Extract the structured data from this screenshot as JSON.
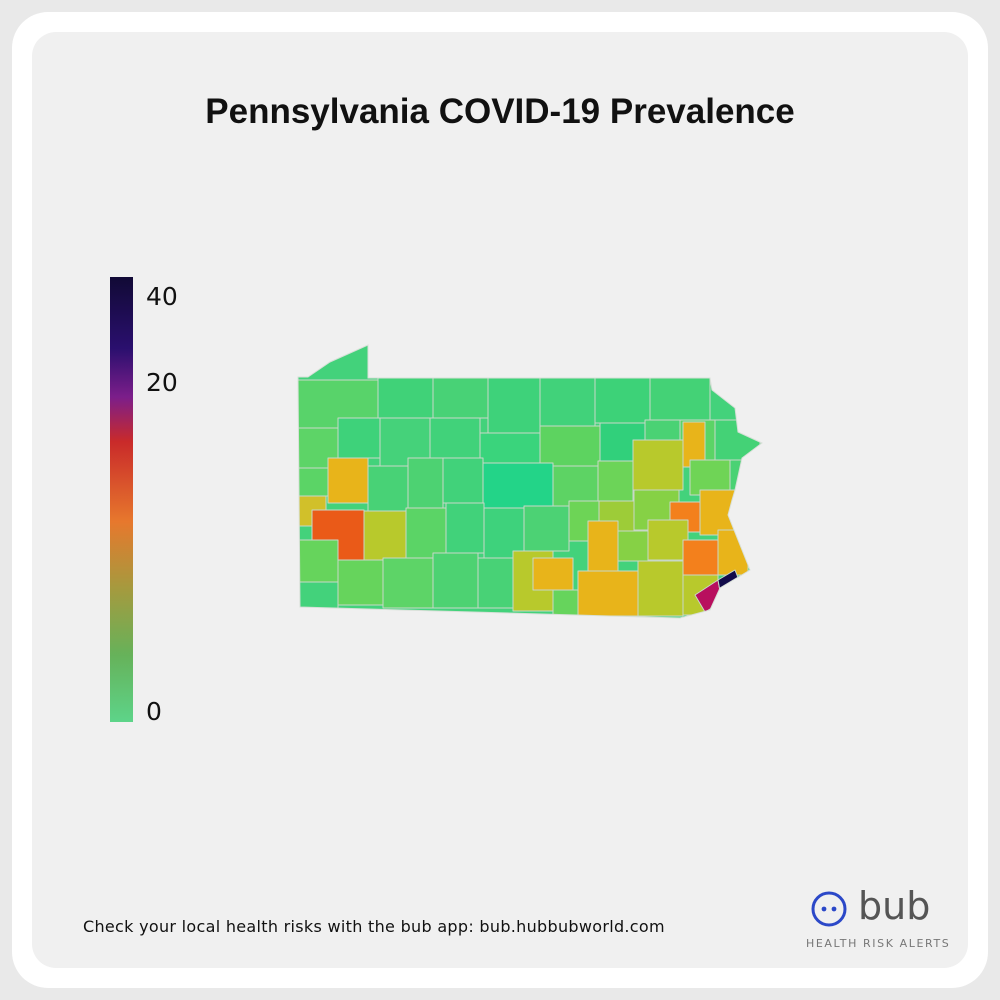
{
  "title": "Pennsylvania COVID-19 Prevalence",
  "legend": {
    "ticks": [
      "40",
      "20",
      "0"
    ],
    "colors": [
      "#110a35",
      "#2a0f6e",
      "#7c1e8a",
      "#c92a2a",
      "#e7782d",
      "#a59a3e",
      "#66b25a",
      "#5dd489"
    ]
  },
  "footer_text": "Check your local health risks with the bub app:  bub.hubbubworld.com",
  "brand": {
    "name": "bub",
    "tagline": "HEALTH RISK ALERTS",
    "accent": "#2b48c8"
  },
  "map": {
    "region": "Pennsylvania",
    "palette": {
      "green": "#43d27b",
      "mid_green": "#66d45c",
      "yellow_green": "#b8c92c",
      "yellow": "#e8b41a",
      "orange": "#f3801c",
      "red_orange": "#ea5a18",
      "magenta": "#b80f5e",
      "navy": "#120c4a"
    }
  }
}
